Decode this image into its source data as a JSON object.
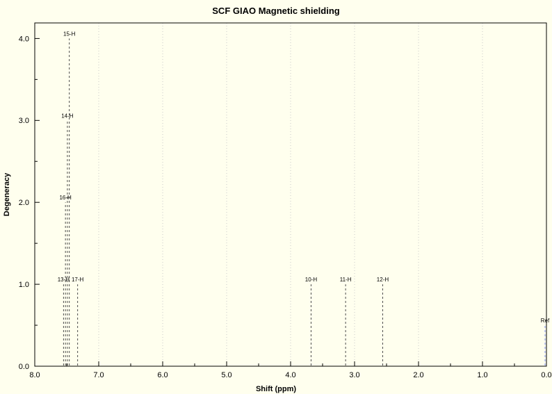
{
  "chart_data": {
    "type": "stem",
    "title": "SCF GIAO Magnetic shielding",
    "xlabel": "Shift (ppm)",
    "ylabel": "Degeneracy",
    "xlim": [
      8.0,
      0.0
    ],
    "ylim": [
      0.0,
      4.19
    ],
    "x_ticks": [
      {
        "value": 8.0,
        "label": "8.0"
      },
      {
        "value": 7.0,
        "label": "7.0"
      },
      {
        "value": 6.0,
        "label": "6.0"
      },
      {
        "value": 5.0,
        "label": "5.0"
      },
      {
        "value": 4.0,
        "label": "4.0"
      },
      {
        "value": 3.0,
        "label": "3.0"
      },
      {
        "value": 2.0,
        "label": "2.0"
      },
      {
        "value": 1.0,
        "label": "1.0"
      },
      {
        "value": 0.0,
        "label": "0.0"
      }
    ],
    "y_ticks": [
      {
        "value": 0.0,
        "label": "0.0"
      },
      {
        "value": 1.0,
        "label": "1.0"
      },
      {
        "value": 2.0,
        "label": "2.0"
      },
      {
        "value": 3.0,
        "label": "3.0"
      },
      {
        "value": 4.0,
        "label": "4.0"
      }
    ],
    "x_minor_step": 0.5,
    "y_minor_step": 0.5,
    "grid": "vertical-dotted",
    "peaks": [
      {
        "label": "15-H",
        "shift": 7.46,
        "degeneracy": 4.0,
        "color": "peak"
      },
      {
        "label": "14-H",
        "shift": 7.49,
        "degeneracy": 3.0,
        "color": "peak"
      },
      {
        "label": "16-H",
        "shift": 7.52,
        "degeneracy": 2.0,
        "color": "peak"
      },
      {
        "label": "13-H",
        "shift": 7.55,
        "degeneracy": 1.0,
        "color": "peak"
      },
      {
        "label": "17-H",
        "shift": 7.33,
        "degeneracy": 1.0,
        "color": "peak"
      },
      {
        "label": "10-H",
        "shift": 3.68,
        "degeneracy": 1.0,
        "color": "peak"
      },
      {
        "label": "11-H",
        "shift": 3.14,
        "degeneracy": 1.0,
        "color": "peak"
      },
      {
        "label": "12-H",
        "shift": 2.56,
        "degeneracy": 1.0,
        "color": "peak"
      },
      {
        "label": "Ref",
        "shift": 0.0,
        "degeneracy": 0.5,
        "color": "ref"
      }
    ]
  },
  "colors": {
    "background": "#ffffee",
    "axis": "#000000",
    "text": "#000000",
    "grid": "#c8c8c8",
    "peak": "#4d4d4d",
    "ref": "#7f8fef"
  }
}
